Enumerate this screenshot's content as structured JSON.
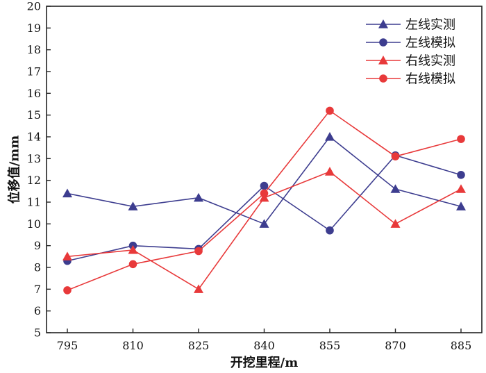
{
  "chart_data": {
    "type": "line",
    "xlabel": "开挖里程/m",
    "ylabel": "位移值/mm",
    "categories": [
      "795",
      "810",
      "825",
      "840",
      "855",
      "870",
      "885"
    ],
    "ylim": [
      5,
      20
    ],
    "yticks": [
      "5",
      "6",
      "7",
      "8",
      "9",
      "10",
      "11",
      "12",
      "13",
      "14",
      "15",
      "16",
      "17",
      "18",
      "19",
      "20"
    ],
    "grid": false,
    "legend_position": "top-right",
    "series": [
      {
        "name": "左线实测",
        "marker": "triangle",
        "color": "#3d3d8f",
        "values": [
          11.4,
          10.8,
          11.2,
          10.0,
          14.0,
          11.6,
          10.8
        ]
      },
      {
        "name": "左线模拟",
        "marker": "circle",
        "color": "#3d3d8f",
        "values": [
          8.3,
          9.0,
          8.85,
          11.75,
          9.7,
          13.15,
          12.25
        ]
      },
      {
        "name": "右线实测",
        "marker": "triangle",
        "color": "#e8393a",
        "values": [
          8.5,
          8.8,
          7.0,
          11.2,
          12.4,
          10.0,
          11.6
        ]
      },
      {
        "name": "右线模拟",
        "marker": "circle",
        "color": "#e8393a",
        "values": [
          6.95,
          8.15,
          8.75,
          11.4,
          15.2,
          13.1,
          13.9
        ]
      }
    ]
  }
}
